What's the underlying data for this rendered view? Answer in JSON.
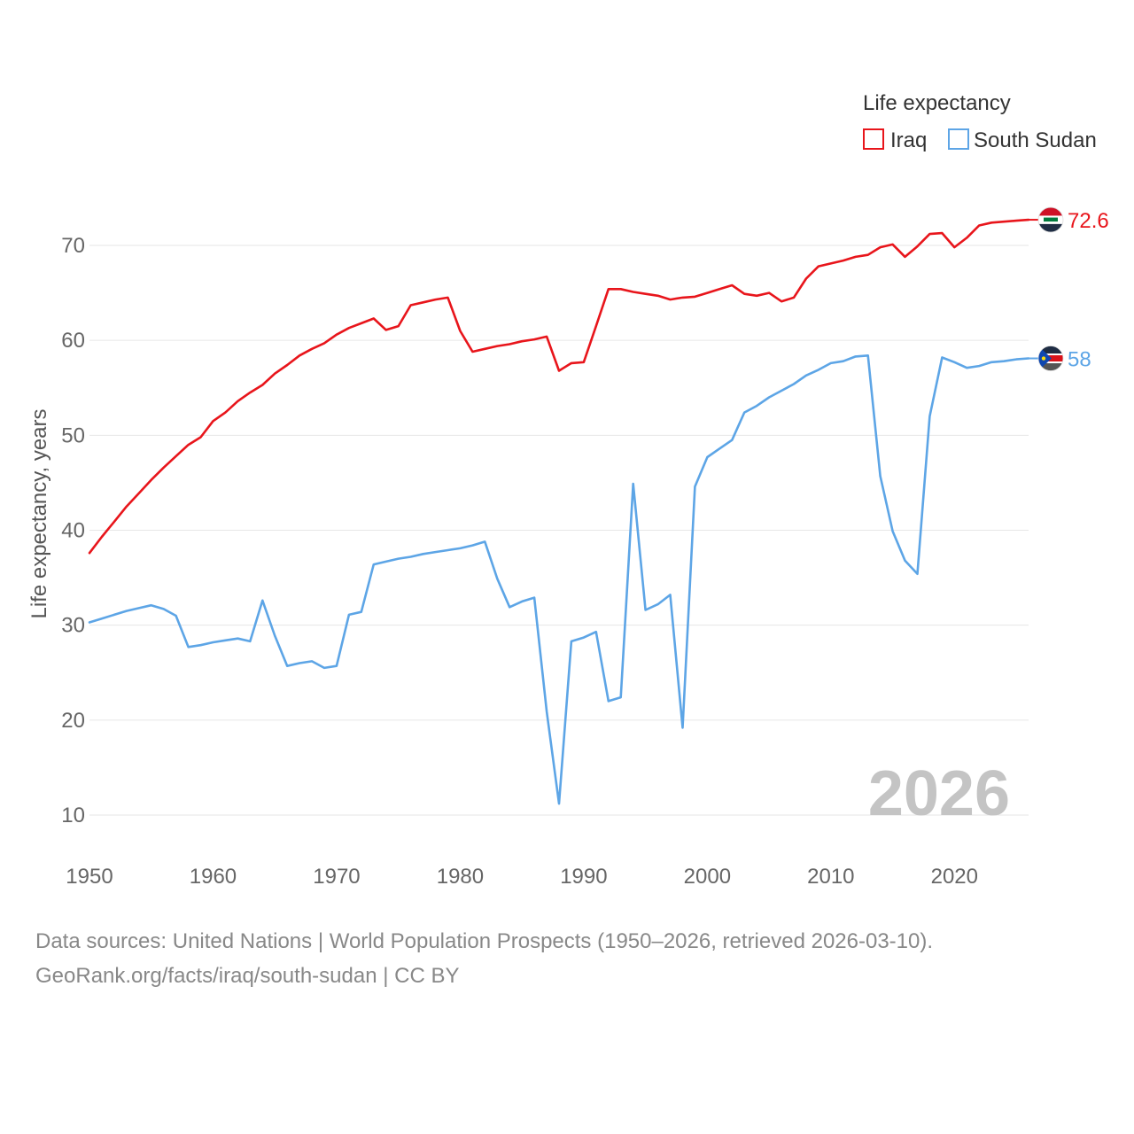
{
  "chart_data": {
    "type": "line",
    "ylabel": "Life expectancy, years",
    "xlabel": "",
    "xlim": [
      1950,
      2026
    ],
    "ylim": [
      5,
      75
    ],
    "x_ticks": [
      1950,
      1960,
      1970,
      1980,
      1990,
      2000,
      2010,
      2020
    ],
    "y_ticks": [
      10,
      20,
      30,
      40,
      50,
      60,
      70
    ],
    "grid": true,
    "legend": {
      "title": "Life expectancy",
      "placement": "top-right"
    },
    "year_label": "2026",
    "x": [
      1950,
      1951,
      1952,
      1953,
      1954,
      1955,
      1956,
      1957,
      1958,
      1959,
      1960,
      1961,
      1962,
      1963,
      1964,
      1965,
      1966,
      1967,
      1968,
      1969,
      1970,
      1971,
      1972,
      1973,
      1974,
      1975,
      1976,
      1977,
      1978,
      1979,
      1980,
      1981,
      1982,
      1983,
      1984,
      1985,
      1986,
      1987,
      1988,
      1989,
      1990,
      1991,
      1992,
      1993,
      1994,
      1995,
      1996,
      1997,
      1998,
      1999,
      2000,
      2001,
      2002,
      2003,
      2004,
      2005,
      2006,
      2007,
      2008,
      2009,
      2010,
      2011,
      2012,
      2013,
      2014,
      2015,
      2016,
      2017,
      2018,
      2019,
      2020,
      2021,
      2022,
      2023,
      2024,
      2025,
      2026
    ],
    "series": [
      {
        "name": "Iraq",
        "color": "#e8151b",
        "end_label": "72.6",
        "flag": "iraq-flag",
        "values": [
          37.6,
          39.3,
          40.9,
          42.5,
          43.9,
          45.3,
          46.6,
          47.8,
          49.0,
          49.8,
          51.5,
          52.4,
          53.6,
          54.5,
          55.3,
          56.5,
          57.4,
          58.4,
          59.1,
          59.7,
          60.6,
          61.3,
          61.8,
          62.3,
          61.1,
          61.5,
          63.7,
          64.0,
          64.3,
          64.5,
          61.0,
          58.8,
          59.1,
          59.4,
          59.6,
          59.9,
          60.1,
          60.4,
          56.8,
          57.6,
          57.7,
          61.5,
          65.4,
          65.4,
          65.1,
          64.9,
          64.7,
          64.3,
          64.5,
          64.6,
          65.0,
          65.4,
          65.8,
          64.9,
          64.7,
          65.0,
          64.1,
          64.5,
          66.5,
          67.8,
          68.1,
          68.4,
          68.8,
          69.0,
          69.8,
          70.1,
          68.8,
          69.9,
          71.2,
          71.3,
          69.8,
          70.8,
          72.1,
          72.4,
          72.5,
          72.6,
          72.7
        ]
      },
      {
        "name": "South Sudan",
        "color": "#5da5e6",
        "end_label": "58",
        "flag": "south-sudan-flag",
        "values": [
          30.3,
          30.7,
          31.1,
          31.5,
          31.8,
          32.1,
          31.7,
          31.0,
          27.7,
          27.9,
          28.2,
          28.4,
          28.6,
          28.3,
          32.6,
          28.9,
          25.7,
          26.0,
          26.2,
          25.5,
          25.7,
          31.1,
          31.4,
          36.4,
          36.7,
          37.0,
          37.2,
          37.5,
          37.7,
          37.9,
          38.1,
          38.4,
          38.8,
          34.9,
          31.9,
          32.5,
          32.9,
          20.9,
          11.2,
          28.3,
          28.7,
          29.3,
          22.0,
          22.4,
          44.9,
          31.6,
          32.2,
          33.2,
          19.2,
          44.6,
          47.7,
          48.6,
          49.5,
          52.4,
          53.1,
          54.0,
          54.7,
          55.4,
          56.3,
          56.9,
          57.6,
          57.8,
          58.3,
          58.4,
          45.7,
          39.9,
          36.8,
          35.4,
          52.0,
          58.2,
          57.7,
          57.1,
          57.3,
          57.7,
          57.8,
          58.0,
          58.1
        ]
      }
    ]
  },
  "footer": {
    "line1": "Data sources: United Nations | World Population Prospects (1950–2026, retrieved 2026-03-10).",
    "line2": "GeoRank.org/facts/iraq/south-sudan | CC BY"
  }
}
